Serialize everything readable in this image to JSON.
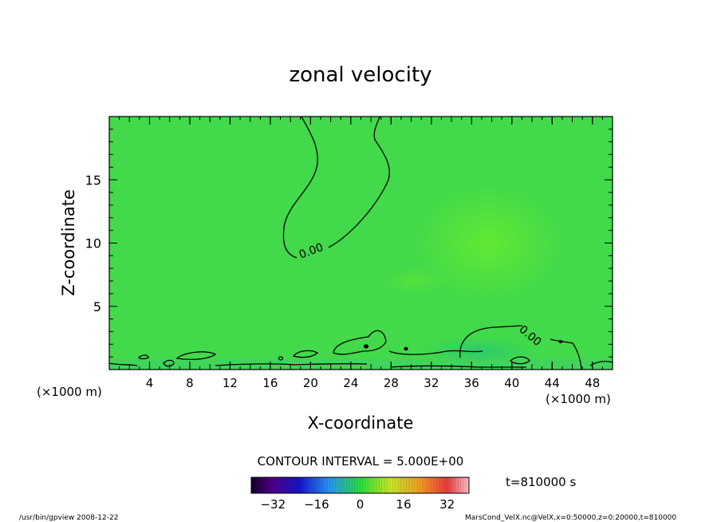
{
  "chart_data": {
    "type": "heatmap",
    "title": "zonal velocity",
    "xlabel": "X-coordinate",
    "ylabel": "Z-coordinate",
    "x_unit_left": "(×1000 m)",
    "x_unit_right": "(×1000 m)",
    "xlim": [
      0,
      50
    ],
    "ylim": [
      0,
      20
    ],
    "x_ticks": [
      4,
      8,
      12,
      16,
      20,
      24,
      28,
      32,
      36,
      40,
      44,
      48
    ],
    "y_ticks": [
      5,
      10,
      15
    ],
    "contour_label": "0.00",
    "contour_interval": "CONTOUR INTERVAL = 5.000E+00",
    "time_label": "t=810000 s",
    "colorbar": {
      "range": [
        -40,
        40
      ],
      "ticks": [
        -32,
        -16,
        0,
        16,
        32
      ]
    },
    "field_note": "Velocity is near zero (green) across the domain, with a weak positive maximum near x≈38, z≈9 and small negative patches near the bottom boundary."
  },
  "footer": {
    "left": "/usr/bin/gpview   2008-12-22",
    "right": "MarsCond_VelX.nc@VelX,x=0:50000,z=0:20000,t=810000"
  },
  "colors": {
    "background_field": "#42d94a",
    "highlight_field": "#58e83a",
    "frame": "#000000"
  }
}
